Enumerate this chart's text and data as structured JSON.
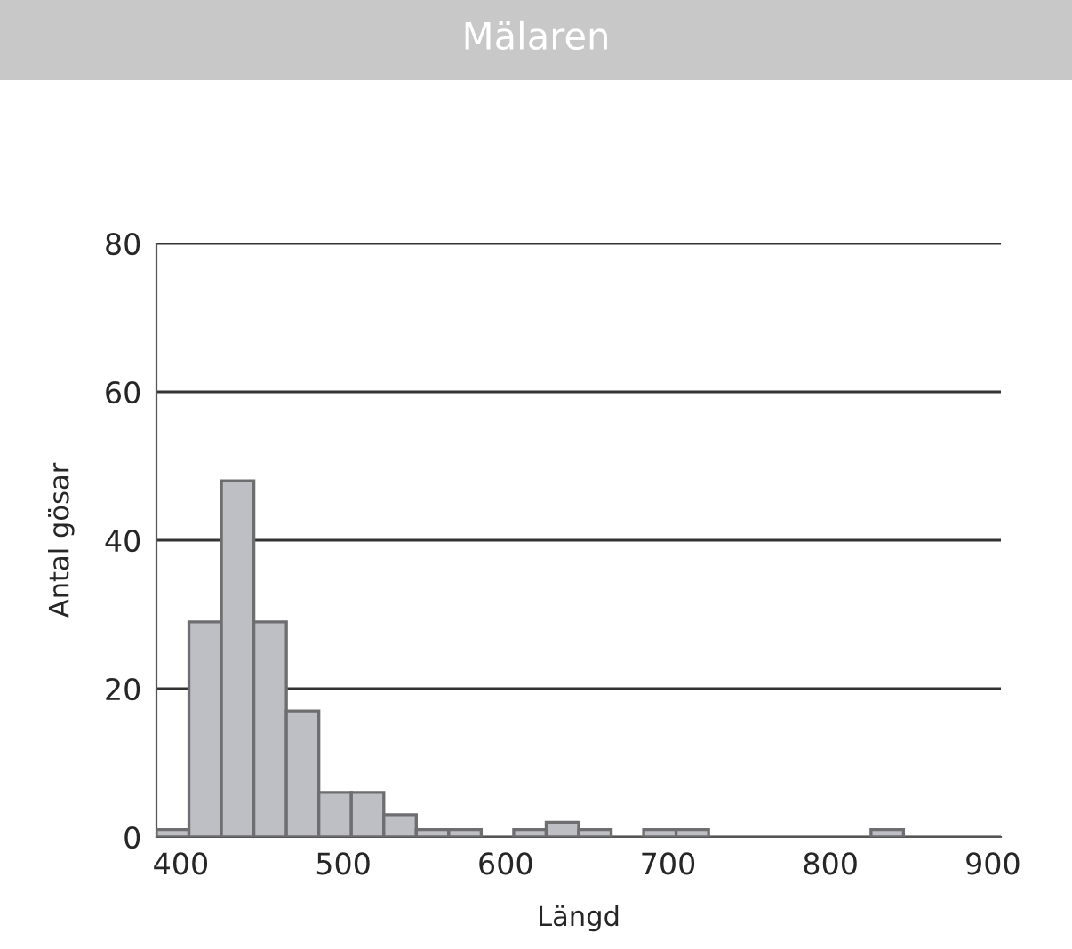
{
  "chart_data": {
    "type": "histogram",
    "title": "Mälaren",
    "xlabel": "Längd",
    "ylabel": "Antal gösar",
    "bins": [
      385,
      405,
      425,
      445,
      465,
      485,
      505,
      525,
      545,
      565,
      585,
      605,
      625,
      645,
      665,
      685,
      705,
      725,
      745,
      765,
      785,
      805,
      825,
      845,
      865,
      885,
      905
    ],
    "values": [
      1,
      29,
      48,
      29,
      17,
      6,
      6,
      3,
      1,
      1,
      0,
      1,
      2,
      1,
      0,
      1,
      1,
      0,
      0,
      0,
      0,
      0,
      1,
      0,
      0,
      0
    ],
    "color": "#bebfc4",
    "xlim": [
      385,
      905
    ],
    "xticks": [
      400,
      500,
      600,
      700,
      800,
      900
    ],
    "ylim": [
      0,
      80
    ],
    "yticks": [
      0,
      20,
      40,
      60,
      80
    ],
    "grid": "y"
  }
}
